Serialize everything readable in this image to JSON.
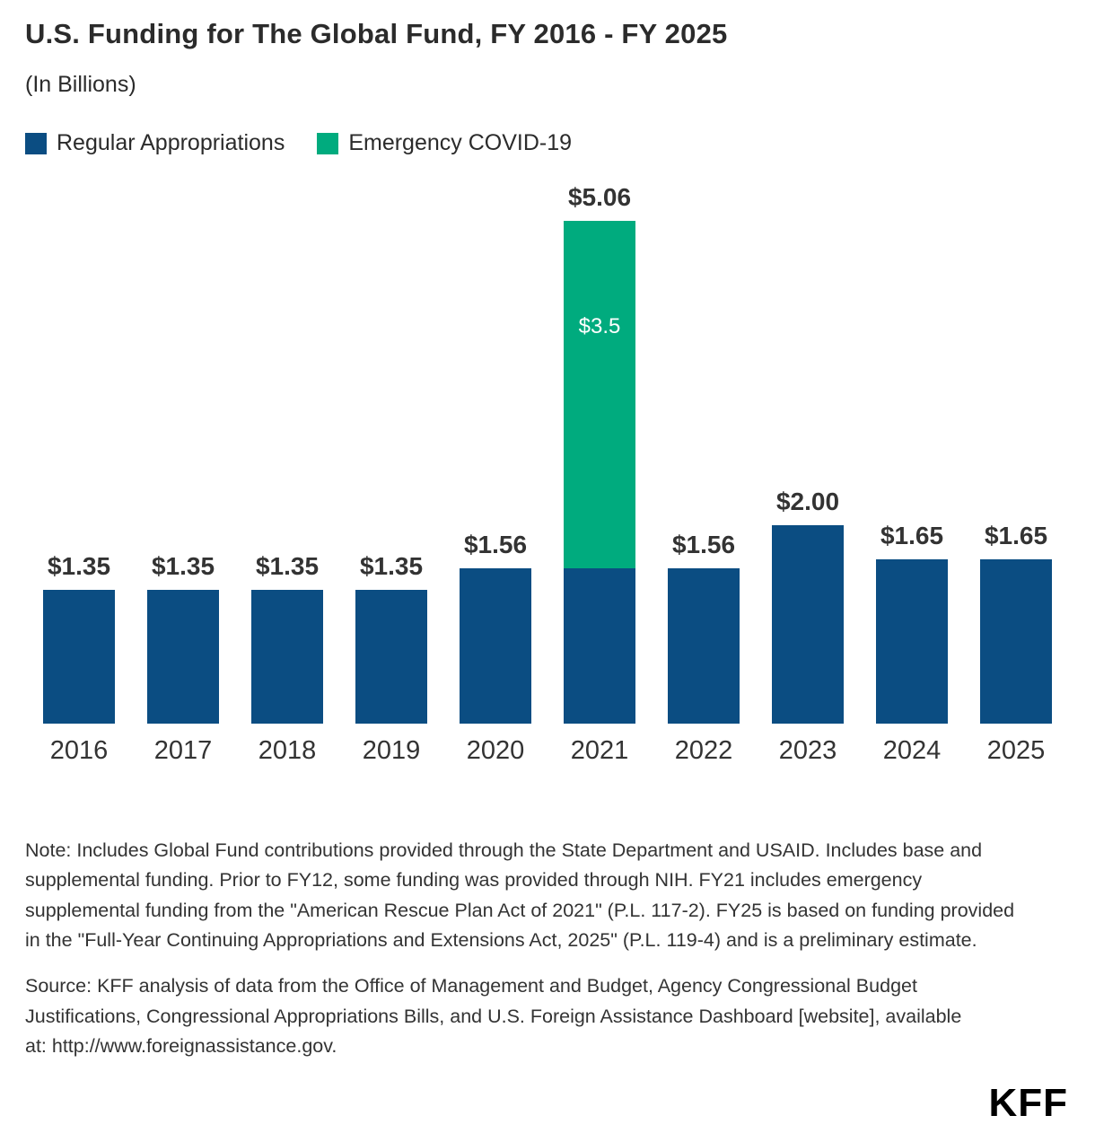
{
  "header": {
    "title": "U.S. Funding for The Global Fund, FY 2016 - FY 2025",
    "subtitle": "(In Billions)"
  },
  "legend": [
    {
      "label": "Regular Appropriations",
      "color": "#0b4d82"
    },
    {
      "label": "Emergency COVID-19",
      "color": "#00ab7e"
    }
  ],
  "chart_data": {
    "type": "bar",
    "stacked": true,
    "title": "U.S. Funding for The Global Fund, FY 2016 - FY 2025",
    "units": "Billions USD",
    "categories": [
      "2016",
      "2017",
      "2018",
      "2019",
      "2020",
      "2021",
      "2022",
      "2023",
      "2024",
      "2025"
    ],
    "series": [
      {
        "name": "Regular Appropriations",
        "color": "#0b4d82",
        "values": [
          1.35,
          1.35,
          1.35,
          1.35,
          1.56,
          1.56,
          1.56,
          2.0,
          1.65,
          1.65
        ]
      },
      {
        "name": "Emergency COVID-19",
        "color": "#00ab7e",
        "values": [
          0,
          0,
          0,
          0,
          0,
          3.5,
          0,
          0,
          0,
          0
        ]
      }
    ],
    "totals": [
      1.35,
      1.35,
      1.35,
      1.35,
      1.56,
      5.06,
      1.56,
      2.0,
      1.65,
      1.65
    ],
    "total_labels": [
      "$1.35",
      "$1.35",
      "$1.35",
      "$1.35",
      "$1.56",
      "$5.06",
      "$1.56",
      "$2.00",
      "$1.65",
      "$1.65"
    ],
    "segment_labels": [
      {
        "category": "2021",
        "series": "Emergency COVID-19",
        "text": "$3.5"
      }
    ],
    "ylim": [
      0,
      5.06
    ],
    "grid": false,
    "legend_position": "top-left"
  },
  "notes": {
    "note": "Note: Includes Global Fund contributions provided through the State Department and USAID. Includes base and supplemental funding. Prior to FY12, some funding was provided through NIH. FY21 includes emergency supplemental funding from the \"American Rescue Plan Act of 2021\" (P.L. 117-2). FY25 is based on funding provided in the \"Full-Year Continuing Appropriations and Extensions Act, 2025\" (P.L. 119-4) and is a preliminary estimate.",
    "source": "Source: KFF analysis of data from the Office of Management and Budget, Agency Congressional Budget Justifications, Congressional Appropriations Bills, and U.S. Foreign Assistance Dashboard [website], available at: http://www.foreignassistance.gov."
  },
  "branding": {
    "logo": "KFF"
  }
}
